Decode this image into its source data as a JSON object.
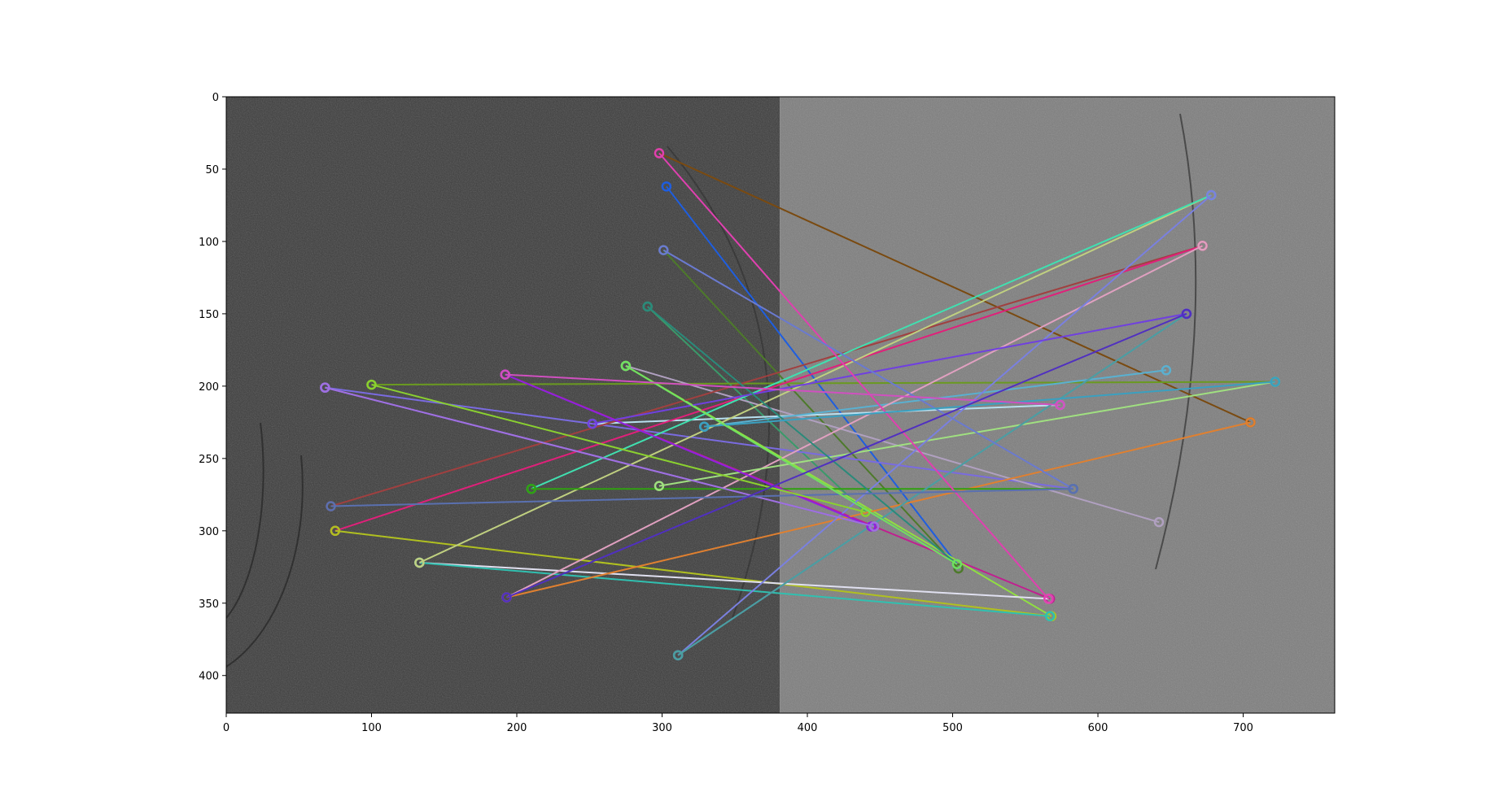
{
  "chart_data": {
    "type": "image_with_feature_matches",
    "xlim": [
      0,
      763
    ],
    "ylim": [
      426,
      0
    ],
    "x_ticks": [
      "0",
      "100",
      "200",
      "300",
      "400",
      "500",
      "600",
      "700"
    ],
    "y_ticks": [
      "0",
      "50",
      "100",
      "150",
      "200",
      "250",
      "300",
      "350",
      "400"
    ],
    "image": {
      "left_panel_x": [
        0,
        381
      ],
      "right_panel_x": [
        381,
        763
      ],
      "left_tone": "#3b3b3b",
      "right_tone": "#7d7d7d"
    },
    "matches": [
      {
        "x1": 298,
        "y1": 39,
        "x2": 705,
        "y2": 225,
        "color": "#7a4a10"
      },
      {
        "x1": 303,
        "y1": 62,
        "x2": 503,
        "y2": 323,
        "color": "#1e5ee0"
      },
      {
        "x1": 301,
        "y1": 106,
        "x2": 504,
        "y2": 326,
        "color": "#4d7a2a"
      },
      {
        "x1": 290,
        "y1": 145,
        "x2": 440,
        "y2": 287,
        "color": "#3a9a6a"
      },
      {
        "x1": 68,
        "y1": 201,
        "x2": 583,
        "y2": 271,
        "color": "#7a6be0"
      },
      {
        "x1": 68,
        "y1": 201,
        "x2": 446,
        "y2": 297,
        "color": "#6a5ad0"
      },
      {
        "x1": 100,
        "y1": 199,
        "x2": 722,
        "y2": 197,
        "color": "#6a9a20"
      },
      {
        "x1": 192,
        "y1": 192,
        "x2": 567,
        "y2": 347,
        "color": "#c02090"
      },
      {
        "x1": 275,
        "y1": 186,
        "x2": 568,
        "y2": 359,
        "color": "#90e040"
      },
      {
        "x1": 275,
        "y1": 186,
        "x2": 642,
        "y2": 294,
        "color": "#b0a0c0"
      },
      {
        "x1": 252,
        "y1": 226,
        "x2": 574,
        "y2": 213,
        "color": "#b8e0f0"
      },
      {
        "x1": 329,
        "y1": 228,
        "x2": 647,
        "y2": 189,
        "color": "#5ab0d0"
      },
      {
        "x1": 72,
        "y1": 283,
        "x2": 672,
        "y2": 103,
        "color": "#a04040"
      },
      {
        "x1": 75,
        "y1": 300,
        "x2": 672,
        "y2": 103,
        "color": "#e0207a"
      },
      {
        "x1": 75,
        "y1": 300,
        "x2": 568,
        "y2": 359,
        "color": "#b0c020"
      },
      {
        "x1": 133,
        "y1": 322,
        "x2": 566,
        "y2": 347,
        "color": "#e0e0f0"
      },
      {
        "x1": 133,
        "y1": 322,
        "x2": 567,
        "y2": 359,
        "color": "#30c0b0"
      },
      {
        "x1": 133,
        "y1": 322,
        "x2": 678,
        "y2": 68,
        "color": "#c0d080"
      },
      {
        "x1": 193,
        "y1": 346,
        "x2": 672,
        "y2": 103,
        "color": "#e0a0c0"
      },
      {
        "x1": 193,
        "y1": 346,
        "x2": 705,
        "y2": 225,
        "color": "#e08030"
      },
      {
        "x1": 210,
        "y1": 271,
        "x2": 678,
        "y2": 68,
        "color": "#40e0b0"
      },
      {
        "x1": 210,
        "y1": 271,
        "x2": 583,
        "y2": 271,
        "color": "#30a010"
      },
      {
        "x1": 298,
        "y1": 269,
        "x2": 722,
        "y2": 197,
        "color": "#a0e080"
      },
      {
        "x1": 311,
        "y1": 386,
        "x2": 661,
        "y2": 150,
        "color": "#6070d0"
      },
      {
        "x1": 311,
        "y1": 386,
        "x2": 678,
        "y2": 68,
        "color": "#7a80e0"
      },
      {
        "x1": 311,
        "y1": 386,
        "x2": 661,
        "y2": 150,
        "color": "#4aa0a0"
      },
      {
        "x1": 252,
        "y1": 226,
        "x2": 661,
        "y2": 150,
        "color": "#7040e0"
      },
      {
        "x1": 298,
        "y1": 39,
        "x2": 566,
        "y2": 347,
        "color": "#e040b0"
      },
      {
        "x1": 192,
        "y1": 192,
        "x2": 444,
        "y2": 297,
        "color": "#9020e0"
      },
      {
        "x1": 301,
        "y1": 106,
        "x2": 583,
        "y2": 271,
        "color": "#6a7ad0"
      },
      {
        "x1": 68,
        "y1": 201,
        "x2": 446,
        "y2": 297,
        "color": "#a070e0"
      },
      {
        "x1": 290,
        "y1": 145,
        "x2": 503,
        "y2": 323,
        "color": "#2a8a7a"
      },
      {
        "x1": 72,
        "y1": 283,
        "x2": 583,
        "y2": 271,
        "color": "#5a70b0"
      },
      {
        "x1": 100,
        "y1": 199,
        "x2": 440,
        "y2": 287,
        "color": "#8ad030"
      },
      {
        "x1": 329,
        "y1": 228,
        "x2": 722,
        "y2": 197,
        "color": "#3aa0c0"
      },
      {
        "x1": 275,
        "y1": 186,
        "x2": 503,
        "y2": 323,
        "color": "#70e060"
      },
      {
        "x1": 192,
        "y1": 192,
        "x2": 574,
        "y2": 213,
        "color": "#d050c0"
      },
      {
        "x1": 193,
        "y1": 346,
        "x2": 661,
        "y2": 150,
        "color": "#5030c0"
      }
    ]
  }
}
